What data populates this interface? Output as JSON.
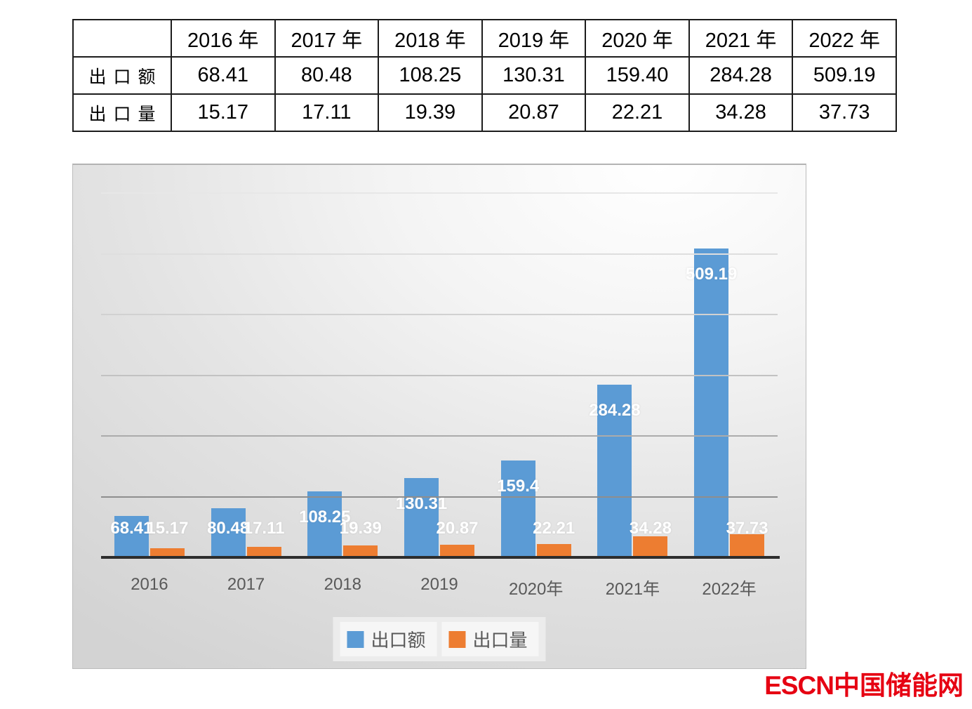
{
  "table": {
    "headers": [
      "",
      "2016 年",
      "2017 年",
      "2018 年",
      "2019 年",
      "2020 年",
      "2021 年",
      "2022 年"
    ],
    "rows": [
      {
        "label": "出口额",
        "values": [
          "68.41",
          "80.48",
          "108.25",
          "130.31",
          "159.40",
          "284.28",
          "509.19"
        ]
      },
      {
        "label": "出口量",
        "values": [
          "15.17",
          "17.11",
          "19.39",
          "20.87",
          "22.21",
          "34.28",
          "37.73"
        ]
      }
    ]
  },
  "chart_data": {
    "type": "bar",
    "categories": [
      "2016",
      "2017",
      "2018",
      "2019",
      "2020年",
      "2021年",
      "2022年"
    ],
    "series": [
      {
        "name": "出口额",
        "color": "#5B9BD5",
        "values": [
          68.41,
          80.48,
          108.25,
          130.31,
          159.4,
          284.28,
          509.19
        ],
        "labels": [
          "68.41",
          "80.48",
          "108.25",
          "130.31",
          "159.4",
          "284.28",
          "509.19"
        ]
      },
      {
        "name": "出口量",
        "color": "#ED7D31",
        "values": [
          15.17,
          17.11,
          19.39,
          20.87,
          22.21,
          34.28,
          37.73
        ],
        "labels": [
          "15.17",
          "17.11",
          "19.39",
          "20.87",
          "22.21",
          "34.28",
          "37.73"
        ]
      }
    ],
    "title": "",
    "xlabel": "",
    "ylabel": "",
    "ylim": [
      0,
      600
    ],
    "grid": true,
    "gridline_interval": 100,
    "legend_position": "bottom",
    "data_label_color": "#ffffff"
  },
  "legend": {
    "items": [
      {
        "label": "出口额",
        "color": "#5B9BD5"
      },
      {
        "label": "出口量",
        "color": "#ED7D31"
      }
    ]
  },
  "logo": {
    "latin": "ESCN",
    "cjk": "中国储能网",
    "color": "#e60012"
  }
}
